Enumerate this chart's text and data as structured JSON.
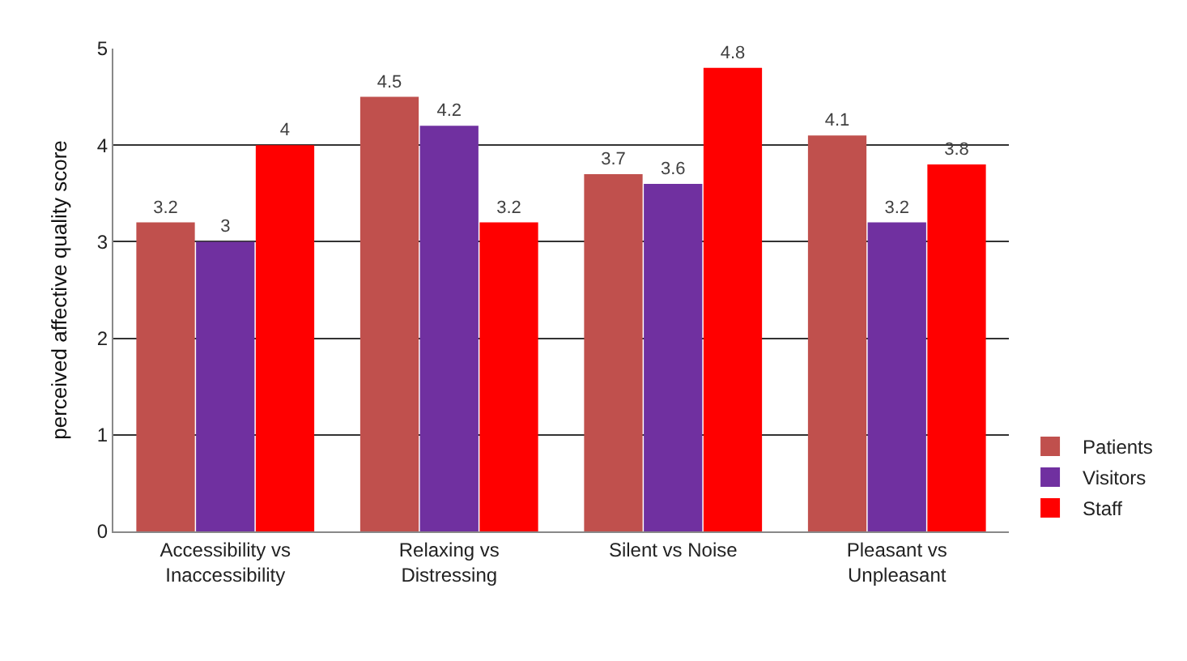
{
  "chart_data": {
    "type": "bar",
    "ylabel": "perceived affective quality score",
    "categories": [
      "Accessibility vs\nInaccessibility",
      "Relaxing vs\nDistressing",
      "Silent vs Noise",
      "Pleasant vs\nUnpleasant"
    ],
    "series": [
      {
        "name": "Patients",
        "color": "#c0504d",
        "values": [
          3.2,
          4.5,
          3.7,
          4.1
        ]
      },
      {
        "name": "Visitors",
        "color": "#7030a0",
        "values": [
          3,
          4.2,
          3.6,
          3.2
        ]
      },
      {
        "name": "Staff",
        "color": "#ff0000",
        "values": [
          4,
          3.2,
          4.8,
          3.8
        ]
      }
    ],
    "ylim": [
      0,
      5
    ],
    "yticks": [
      0,
      1,
      2,
      3,
      4,
      5
    ],
    "grid": "y",
    "legend": "bottom right",
    "data_labels": true
  }
}
